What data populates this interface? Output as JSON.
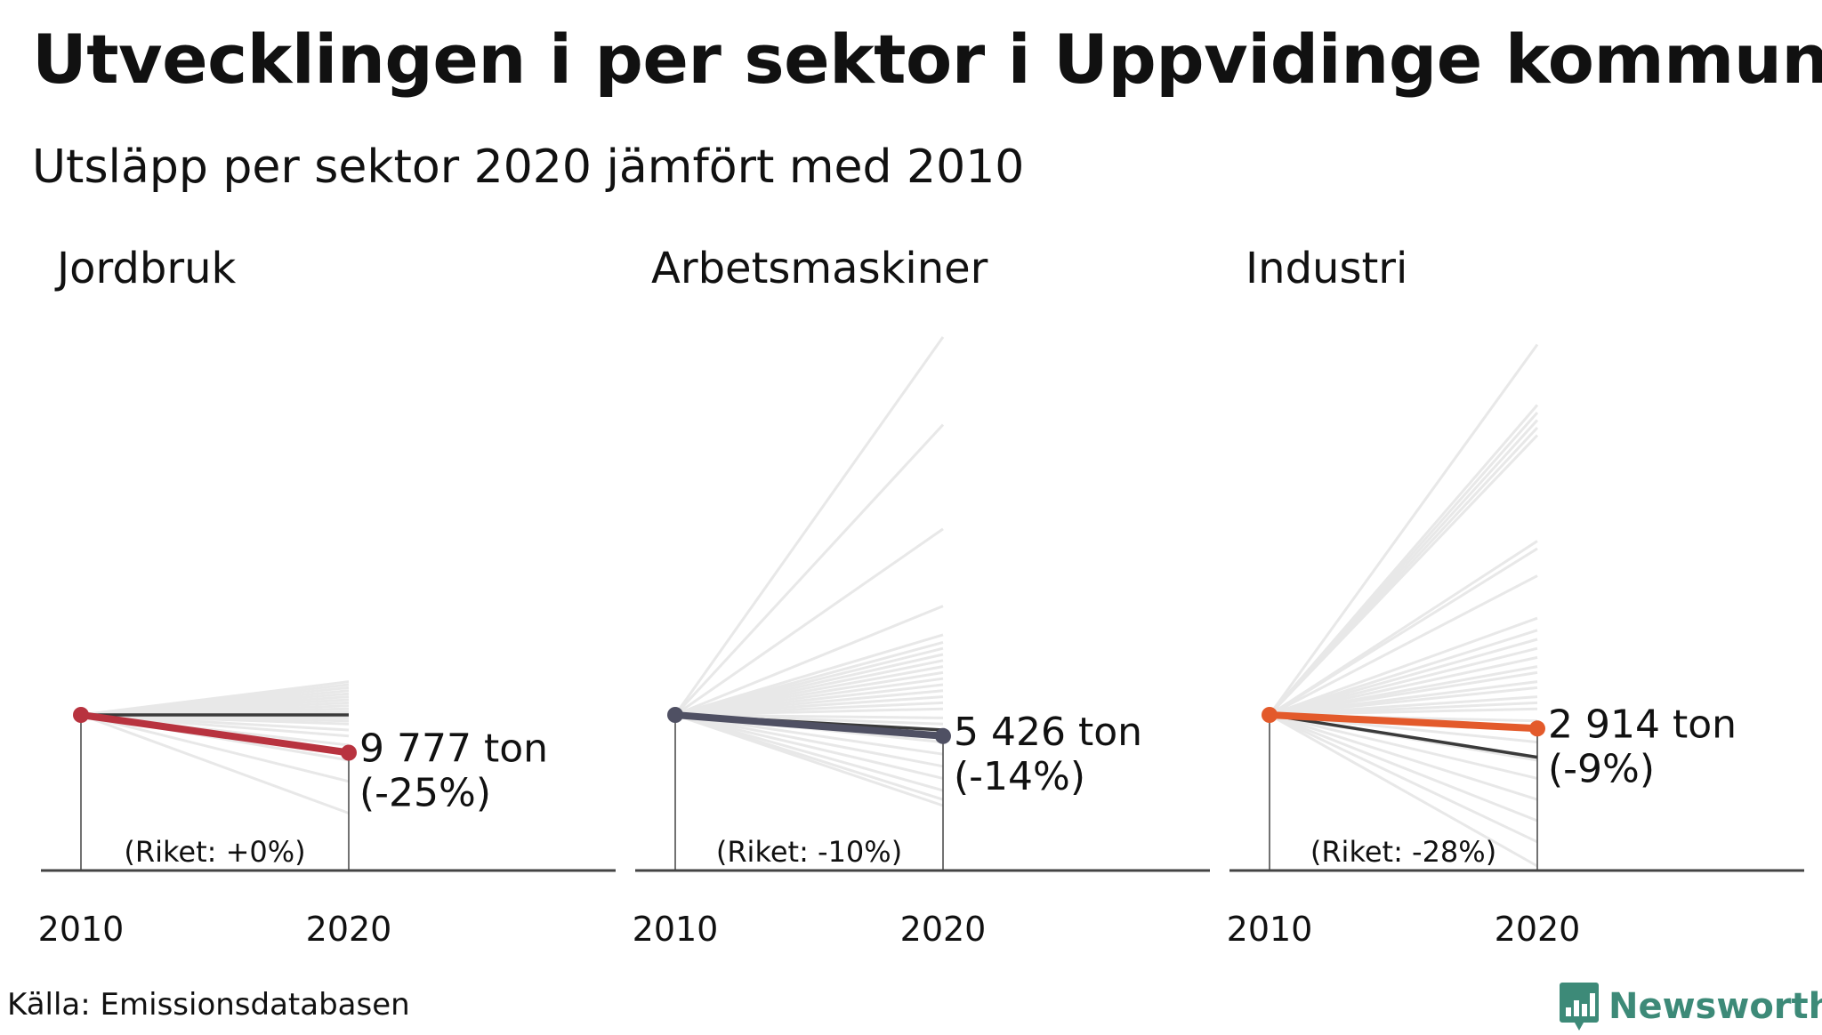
{
  "header": {
    "title": "Utvecklingen i per sektor i Uppvidinge kommun",
    "subtitle": "Utsläpp per sektor 2020 jämfört med 2010"
  },
  "footer": {
    "source": "Källa: Emissionsdatabasen",
    "brand": "Newsworthy",
    "brand_icon": "bar-chart-icon",
    "brand_color": "#3d8a78"
  },
  "chart_data": [
    {
      "type": "line",
      "panel_title": "Jordbruk",
      "x": [
        "2010",
        "2020"
      ],
      "highlight": {
        "values": [
          0,
          -25
        ],
        "color": "#b8333f",
        "value_label": "9 777 ton",
        "change_label": "(-25%)"
      },
      "national": {
        "values": [
          0,
          0
        ],
        "color": "#3a3a3a",
        "label": "(Riket: +0%)"
      },
      "background_changes": [
        22,
        20,
        18,
        16,
        14,
        12,
        10,
        8,
        6,
        4,
        2,
        -2,
        -4,
        -6,
        -10,
        -14,
        -20,
        -30,
        -44,
        -65
      ],
      "background_color": "#e8e8e8",
      "ylim": [
        -100,
        100
      ]
    },
    {
      "type": "line",
      "panel_title": "Arbetsmaskiner",
      "x": [
        "2010",
        "2020"
      ],
      "highlight": {
        "values": [
          0,
          -14
        ],
        "color": "#4f5063",
        "value_label": "5 426 ton",
        "change_label": "(-14%)"
      },
      "national": {
        "values": [
          0,
          -10
        ],
        "color": "#3a3a3a",
        "label": "(Riket: -10%)"
      },
      "background_changes": [
        250,
        192,
        123,
        72,
        53,
        48,
        44,
        40,
        36,
        32,
        28,
        24,
        20,
        16,
        12,
        8,
        4,
        -2,
        -6,
        -10,
        -18,
        -26,
        -34,
        -42,
        -50,
        -56,
        -60
      ],
      "background_color": "#e8e8e8",
      "ylim": [
        -100,
        100
      ]
    },
    {
      "type": "line",
      "panel_title": "Industri",
      "x": [
        "2010",
        "2020"
      ],
      "highlight": {
        "values": [
          0,
          -9
        ],
        "color": "#e35a2b",
        "value_label": "2 914 ton",
        "change_label": "(-9%)"
      },
      "national": {
        "values": [
          0,
          -28
        ],
        "color": "#3a3a3a",
        "label": "(Riket: -28%)"
      },
      "background_changes": [
        245,
        205,
        200,
        195,
        190,
        185,
        115,
        110,
        92,
        64,
        56,
        50,
        44,
        38,
        32,
        28,
        22,
        18,
        12,
        8,
        4,
        -4,
        -10,
        -18,
        -30,
        -42,
        -56,
        -70,
        -84,
        -100
      ],
      "background_color": "#e8e8e8",
      "ylim": [
        -100,
        100
      ]
    }
  ]
}
